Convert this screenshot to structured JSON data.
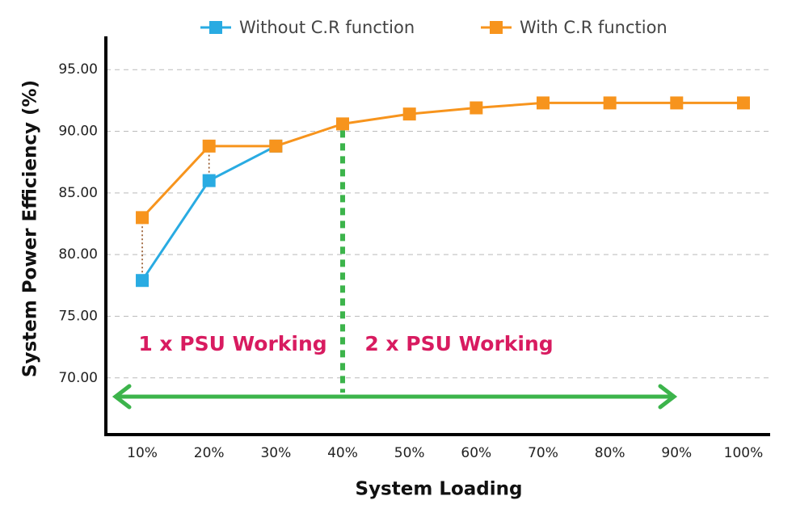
{
  "chart_data": {
    "type": "line",
    "x_label": "System Loading",
    "y_label": "System Power Efficiency (%)",
    "categories": [
      "10%",
      "20%",
      "30%",
      "40%",
      "50%",
      "60%",
      "70%",
      "80%",
      "90%",
      "100%"
    ],
    "series": [
      {
        "name": "Without C.R function",
        "color": "#29abe2",
        "values": [
          77.9,
          86.0,
          88.8,
          null,
          null,
          null,
          null,
          null,
          null,
          null
        ]
      },
      {
        "name": "With C.R function",
        "color": "#f7941d",
        "values": [
          83.0,
          88.8,
          88.8,
          90.6,
          91.4,
          91.9,
          92.3,
          92.3,
          92.3,
          92.3
        ]
      }
    ],
    "ylim": [
      65.4,
      97.7
    ],
    "yticks": [
      {
        "value": 70,
        "label": "70.00"
      },
      {
        "value": 75,
        "label": "75.00"
      },
      {
        "value": 80,
        "label": "80.00"
      },
      {
        "value": 85,
        "label": "85.00"
      },
      {
        "value": 90,
        "label": "90.00"
      },
      {
        "value": 95,
        "label": "95.00"
      }
    ],
    "grid": true,
    "annotations": [
      "1 x PSU Working",
      "2 x PSU Working"
    ]
  }
}
